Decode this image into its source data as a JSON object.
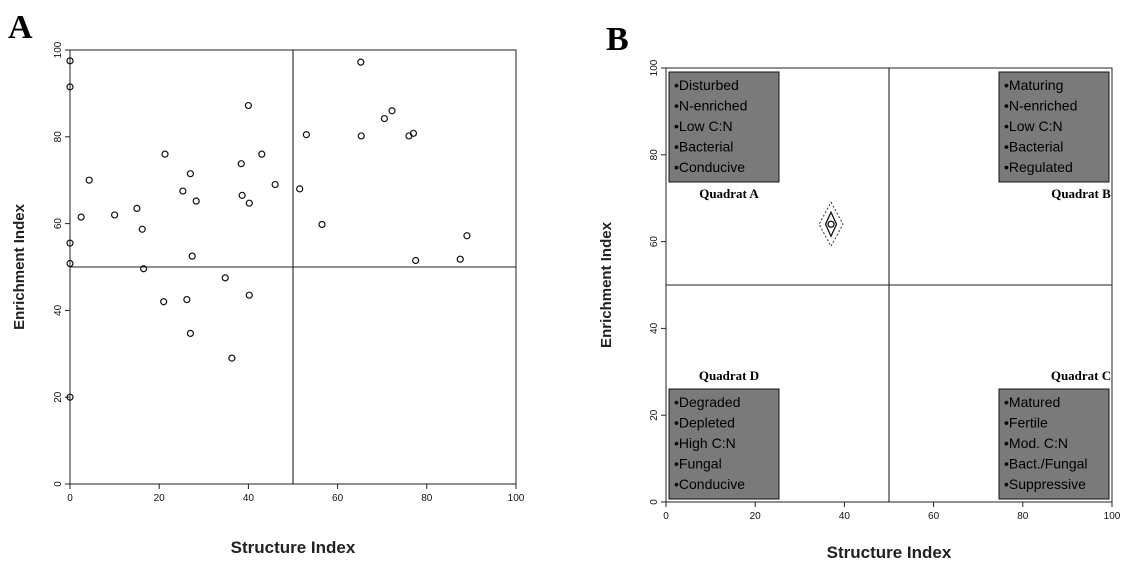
{
  "chart_data": [
    {
      "type": "scatter",
      "panel_label": "A",
      "xlabel": "Structure Index",
      "ylabel": "Enrichment Index",
      "xlim": [
        0,
        100
      ],
      "ylim": [
        0,
        100
      ],
      "x_ticks": [
        "0",
        "20",
        "40",
        "60",
        "80",
        "100"
      ],
      "y_ticks": [
        "0",
        "20",
        "40",
        "60",
        "80",
        "100"
      ],
      "reference_lines": {
        "x": 50,
        "y": 50
      },
      "grid": false,
      "points": [
        {
          "x": 0,
          "y": 97.5
        },
        {
          "x": 0,
          "y": 91.5
        },
        {
          "x": 0,
          "y": 55.5
        },
        {
          "x": 0,
          "y": 50.8
        },
        {
          "x": 0,
          "y": 20
        },
        {
          "x": 2.5,
          "y": 61.5
        },
        {
          "x": 4.3,
          "y": 70
        },
        {
          "x": 10,
          "y": 62
        },
        {
          "x": 15,
          "y": 63.5
        },
        {
          "x": 16.2,
          "y": 58.7
        },
        {
          "x": 16.5,
          "y": 49.6
        },
        {
          "x": 21,
          "y": 42
        },
        {
          "x": 21.3,
          "y": 76
        },
        {
          "x": 25.3,
          "y": 67.5
        },
        {
          "x": 26.2,
          "y": 42.5
        },
        {
          "x": 27,
          "y": 71.5
        },
        {
          "x": 27,
          "y": 34.7
        },
        {
          "x": 27.4,
          "y": 52.5
        },
        {
          "x": 28.3,
          "y": 65.2
        },
        {
          "x": 34.8,
          "y": 47.5
        },
        {
          "x": 36.3,
          "y": 29
        },
        {
          "x": 38.4,
          "y": 73.8
        },
        {
          "x": 38.6,
          "y": 66.5
        },
        {
          "x": 40,
          "y": 87.2
        },
        {
          "x": 40.2,
          "y": 64.7
        },
        {
          "x": 40.2,
          "y": 43.5
        },
        {
          "x": 43,
          "y": 76
        },
        {
          "x": 46,
          "y": 69
        },
        {
          "x": 51.5,
          "y": 68
        },
        {
          "x": 53,
          "y": 80.5
        },
        {
          "x": 56.5,
          "y": 59.8
        },
        {
          "x": 65.2,
          "y": 97.2
        },
        {
          "x": 65.3,
          "y": 80.2
        },
        {
          "x": 70.5,
          "y": 84.2
        },
        {
          "x": 72.2,
          "y": 86
        },
        {
          "x": 76,
          "y": 80.2
        },
        {
          "x": 77,
          "y": 80.8
        },
        {
          "x": 77.5,
          "y": 51.5
        },
        {
          "x": 87.5,
          "y": 51.8
        },
        {
          "x": 89,
          "y": 57.2
        }
      ]
    },
    {
      "type": "scatter",
      "panel_label": "B",
      "xlabel": "Structure Index",
      "ylabel": "Enrichment Index",
      "xlim": [
        0,
        100
      ],
      "ylim": [
        0,
        100
      ],
      "x_ticks": [
        "0",
        "20",
        "40",
        "60",
        "80",
        "100"
      ],
      "y_ticks": [
        "0",
        "20",
        "40",
        "60",
        "80",
        "100"
      ],
      "reference_lines": {
        "x": 50,
        "y": 50
      },
      "grid": false,
      "points": [
        {
          "x": 37,
          "y": 64
        }
      ],
      "quadrants": [
        {
          "title": "Quadrat A",
          "position": "top-left",
          "items": [
            "•Disturbed",
            "•N-enriched",
            "•Low C:N",
            "•Bacterial",
            "•Conducive"
          ]
        },
        {
          "title": "Quadrat B",
          "position": "top-right",
          "items": [
            "•Maturing",
            "•N-enriched",
            "•Low C:N",
            "•Bacterial",
            "•Regulated"
          ]
        },
        {
          "title": "Quadrat D",
          "position": "bottom-left",
          "items": [
            "•Degraded",
            "•Depleted",
            "•High C:N",
            "•Fungal",
            "•Conducive"
          ]
        },
        {
          "title": "Quadrat C",
          "position": "bottom-right",
          "items": [
            "•Matured",
            "•Fertile",
            "•Mod. C:N",
            "•Bact./Fungal",
            "•Suppressive"
          ]
        }
      ],
      "box_color": "#7a7a7a"
    }
  ]
}
